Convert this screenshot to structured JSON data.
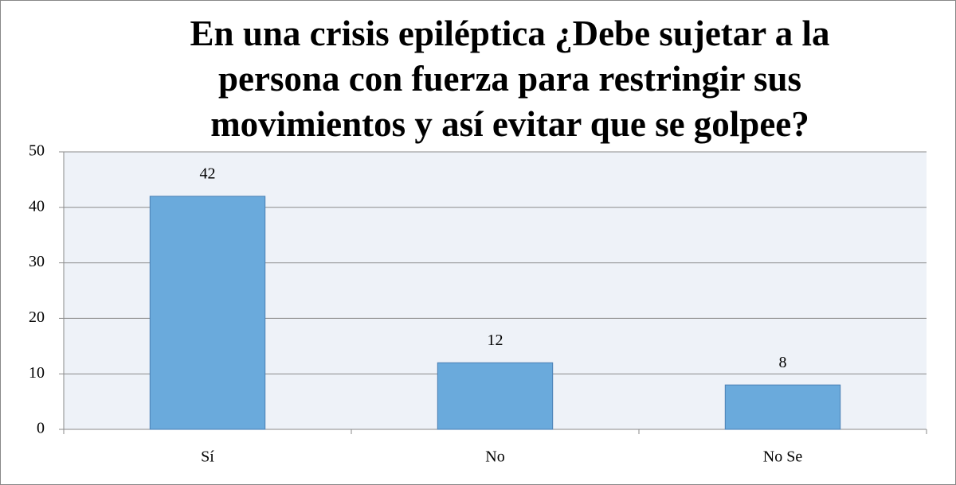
{
  "chart_data": {
    "type": "bar",
    "title": "En una crisis epiléptica ¿Debe sujetar a la persona con fuerza para restringir sus movimientos y así evitar que se golpee?",
    "categories": [
      "Sí",
      "No",
      "No Se"
    ],
    "values": [
      42,
      12,
      8
    ],
    "color": "#6aaadc",
    "ylim": [
      0,
      50
    ],
    "yticks": [
      0,
      10,
      20,
      30,
      40,
      50
    ],
    "grid": true
  }
}
